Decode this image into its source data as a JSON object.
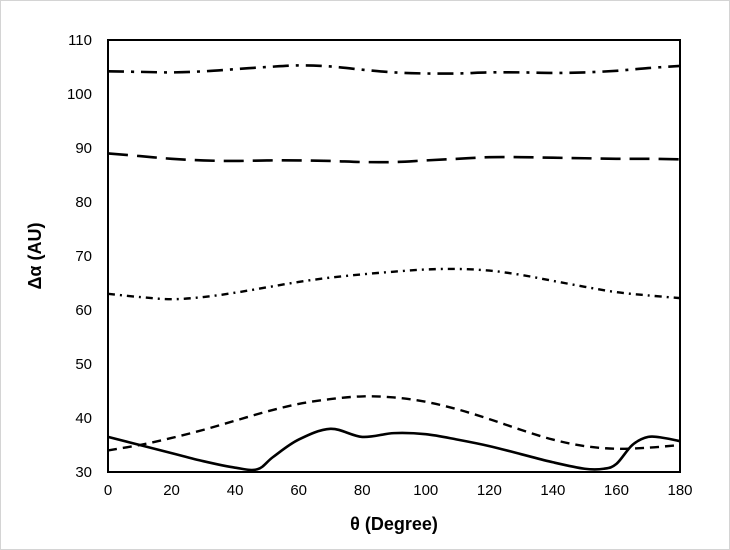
{
  "chart_data": {
    "type": "line",
    "xlabel": "θ (Degree)",
    "ylabel": "Δα (AU)",
    "xlim": [
      0,
      180
    ],
    "ylim": [
      30,
      110
    ],
    "xticks": [
      "0",
      "20",
      "40",
      "60",
      "80",
      "100",
      "120",
      "140",
      "160",
      "180"
    ],
    "yticks": [
      "30",
      "40",
      "50",
      "60",
      "70",
      "80",
      "90",
      "100",
      "110"
    ],
    "grid": false,
    "legend": "none",
    "series": [
      {
        "style": "solid",
        "color": "#000000",
        "x": [
          0,
          10,
          20,
          30,
          40,
          47,
          52,
          60,
          70,
          80,
          90,
          100,
          110,
          120,
          130,
          140,
          150,
          156,
          160,
          165,
          170,
          175,
          180
        ],
        "y": [
          36.5,
          35.0,
          33.5,
          32.0,
          30.8,
          30.5,
          32.8,
          36.0,
          38.0,
          36.5,
          37.2,
          37.0,
          36.0,
          34.8,
          33.3,
          31.8,
          30.6,
          30.6,
          31.5,
          35.0,
          36.5,
          36.3,
          35.7
        ]
      },
      {
        "style": "dash",
        "color": "#000000",
        "x": [
          0,
          10,
          20,
          30,
          40,
          50,
          60,
          70,
          80,
          90,
          100,
          110,
          120,
          130,
          140,
          150,
          160,
          170,
          180
        ],
        "y": [
          34.0,
          35.0,
          36.3,
          37.8,
          39.5,
          41.2,
          42.6,
          43.5,
          44.0,
          43.8,
          43.0,
          41.6,
          39.8,
          37.8,
          36.0,
          34.8,
          34.3,
          34.5,
          35.0
        ]
      },
      {
        "style": "dash-dot",
        "color": "#000000",
        "x": [
          0,
          10,
          20,
          30,
          40,
          50,
          60,
          70,
          80,
          90,
          100,
          110,
          120,
          130,
          140,
          150,
          160,
          170,
          180
        ],
        "y": [
          63.0,
          62.4,
          62.0,
          62.4,
          63.2,
          64.2,
          65.2,
          66.0,
          66.6,
          67.1,
          67.5,
          67.6,
          67.3,
          66.5,
          65.4,
          64.3,
          63.3,
          62.7,
          62.2
        ]
      },
      {
        "style": "long-dash",
        "color": "#000000",
        "x": [
          0,
          10,
          20,
          30,
          40,
          50,
          60,
          70,
          80,
          90,
          100,
          110,
          120,
          130,
          140,
          150,
          160,
          170,
          180
        ],
        "y": [
          89.0,
          88.5,
          88.0,
          87.7,
          87.6,
          87.7,
          87.7,
          87.6,
          87.4,
          87.4,
          87.7,
          88.0,
          88.3,
          88.3,
          88.2,
          88.1,
          88.0,
          88.0,
          87.9
        ]
      },
      {
        "style": "long-dash-dot",
        "color": "#000000",
        "x": [
          0,
          10,
          20,
          30,
          40,
          50,
          60,
          70,
          80,
          90,
          100,
          110,
          120,
          130,
          140,
          150,
          160,
          170,
          180
        ],
        "y": [
          104.2,
          104.1,
          104.0,
          104.2,
          104.6,
          105.0,
          105.3,
          105.1,
          104.5,
          104.0,
          103.8,
          103.8,
          104.0,
          104.0,
          103.9,
          104.0,
          104.3,
          104.8,
          105.2
        ]
      }
    ]
  }
}
